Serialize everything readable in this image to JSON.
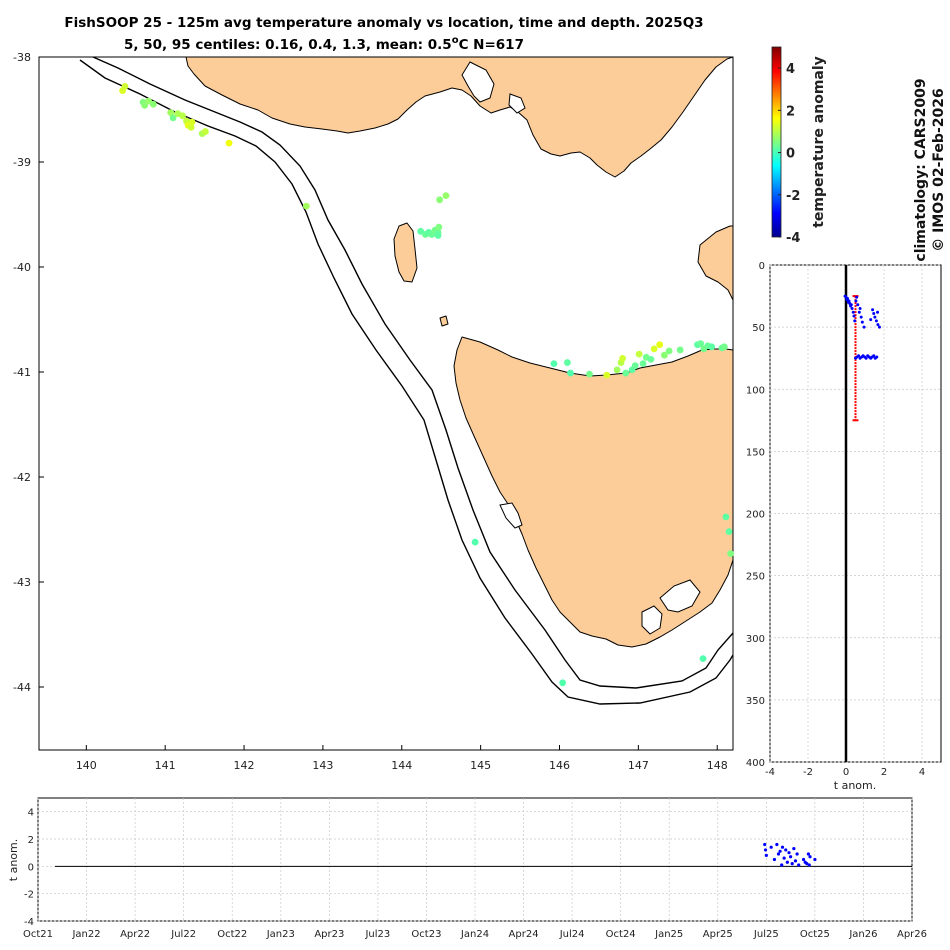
{
  "title": {
    "line1": "FishSOOP 25 - 125m avg temperature anomaly vs location, time and depth. 2025Q3",
    "line2_prefix": "5, 50, 95 centiles: 0.16, 0.4, 1.3, mean: 0.5",
    "line2_unit_sup": "o",
    "line2_suffix": "C N=617"
  },
  "side_text": {
    "climatology": "climatology: CARS2009",
    "copyright": "© IMOS 02-Feb-2026"
  },
  "colors": {
    "land": "#fccc99",
    "profile_points": "#0000ff",
    "median_bar": "#ff0000",
    "zero_line": "#000000"
  },
  "chart_data": [
    {
      "id": "map",
      "type": "scatter",
      "title": "temperature anomaly vs location",
      "xlabel": "",
      "ylabel": "",
      "xlim": [
        139.4,
        148.2
      ],
      "ylim": [
        -44.6,
        -38.0
      ],
      "xticks": [
        140,
        141,
        142,
        143,
        144,
        145,
        146,
        147,
        148
      ],
      "xtick_labels": [
        "140",
        "141",
        "142",
        "143",
        "144",
        "145",
        "146",
        "147",
        "148"
      ],
      "yticks": [
        -38,
        -39,
        -40,
        -41,
        -42,
        -43,
        -44
      ],
      "ytick_labels": [
        "-38",
        "-39",
        "-40",
        "-41",
        "-42",
        "-43",
        "-44"
      ],
      "grid": false,
      "points": [
        {
          "lon": 140.46,
          "lat": -38.32,
          "anom": 1.3
        },
        {
          "lon": 140.49,
          "lat": -38.28,
          "anom": 1.2
        },
        {
          "lon": 140.72,
          "lat": -38.43,
          "anom": 0.5
        },
        {
          "lon": 140.74,
          "lat": -38.46,
          "anom": 0.6
        },
        {
          "lon": 140.79,
          "lat": -38.42,
          "anom": 0.7
        },
        {
          "lon": 140.85,
          "lat": -38.45,
          "anom": 0.6
        },
        {
          "lon": 141.07,
          "lat": -38.53,
          "anom": 0.8
        },
        {
          "lon": 141.1,
          "lat": -38.58,
          "anom": 0.4
        },
        {
          "lon": 141.16,
          "lat": -38.54,
          "anom": 0.9
        },
        {
          "lon": 141.22,
          "lat": -38.56,
          "anom": 1.0
        },
        {
          "lon": 141.27,
          "lat": -38.61,
          "anom": 1.1
        },
        {
          "lon": 141.29,
          "lat": -38.65,
          "anom": 1.4
        },
        {
          "lon": 141.33,
          "lat": -38.67,
          "anom": 1.2
        },
        {
          "lon": 141.34,
          "lat": -38.62,
          "anom": 1.3
        },
        {
          "lon": 141.47,
          "lat": -38.73,
          "anom": 0.9
        },
        {
          "lon": 141.51,
          "lat": -38.71,
          "anom": 1.1
        },
        {
          "lon": 141.81,
          "lat": -38.82,
          "anom": 1.5
        },
        {
          "lon": 142.79,
          "lat": -39.42,
          "anom": 0.8
        },
        {
          "lon": 144.24,
          "lat": -39.66,
          "anom": 0.2
        },
        {
          "lon": 144.3,
          "lat": -39.69,
          "anom": 0.3
        },
        {
          "lon": 144.34,
          "lat": -39.67,
          "anom": 0.2
        },
        {
          "lon": 144.38,
          "lat": -39.69,
          "anom": 0.3
        },
        {
          "lon": 144.42,
          "lat": -39.65,
          "anom": 0.4
        },
        {
          "lon": 144.46,
          "lat": -39.67,
          "anom": 0.3
        },
        {
          "lon": 144.46,
          "lat": -39.7,
          "anom": 0.2
        },
        {
          "lon": 144.47,
          "lat": -39.62,
          "anom": 0.5
        },
        {
          "lon": 144.48,
          "lat": -39.36,
          "anom": 0.6
        },
        {
          "lon": 144.56,
          "lat": -39.32,
          "anom": 0.7
        },
        {
          "lon": 144.93,
          "lat": -42.62,
          "anom": 0.1
        },
        {
          "lon": 145.93,
          "lat": -40.92,
          "anom": 0.1
        },
        {
          "lon": 146.1,
          "lat": -40.91,
          "anom": 0.2
        },
        {
          "lon": 146.14,
          "lat": -41.01,
          "anom": 0.1
        },
        {
          "lon": 146.38,
          "lat": -41.02,
          "anom": 0.4
        },
        {
          "lon": 146.6,
          "lat": -41.03,
          "anom": 1.3
        },
        {
          "lon": 146.73,
          "lat": -40.98,
          "anom": 0.8
        },
        {
          "lon": 146.78,
          "lat": -40.91,
          "anom": 1.0
        },
        {
          "lon": 146.8,
          "lat": -40.87,
          "anom": 1.2
        },
        {
          "lon": 146.84,
          "lat": -41.01,
          "anom": 0.3
        },
        {
          "lon": 146.92,
          "lat": -40.98,
          "anom": 0.2
        },
        {
          "lon": 146.96,
          "lat": -40.94,
          "anom": 0.3
        },
        {
          "lon": 147.01,
          "lat": -40.83,
          "anom": 1.1
        },
        {
          "lon": 147.06,
          "lat": -40.92,
          "anom": 0.3
        },
        {
          "lon": 147.1,
          "lat": -40.86,
          "anom": 0.4
        },
        {
          "lon": 147.16,
          "lat": -40.88,
          "anom": 0.3
        },
        {
          "lon": 147.2,
          "lat": -40.78,
          "anom": 1.3
        },
        {
          "lon": 147.27,
          "lat": -40.74,
          "anom": 1.4
        },
        {
          "lon": 147.33,
          "lat": -40.84,
          "anom": 0.6
        },
        {
          "lon": 147.39,
          "lat": -40.8,
          "anom": 0.5
        },
        {
          "lon": 147.53,
          "lat": -40.79,
          "anom": 0.4
        },
        {
          "lon": 147.75,
          "lat": -40.74,
          "anom": 0.2
        },
        {
          "lon": 147.79,
          "lat": -40.73,
          "anom": 0.3
        },
        {
          "lon": 147.83,
          "lat": -40.78,
          "anom": 0.4
        },
        {
          "lon": 147.88,
          "lat": -40.75,
          "anom": 0.3
        },
        {
          "lon": 147.93,
          "lat": -40.76,
          "anom": 0.2
        },
        {
          "lon": 148.06,
          "lat": -40.77,
          "anom": 0.3
        },
        {
          "lon": 148.09,
          "lat": -40.76,
          "anom": 0.4
        },
        {
          "lon": 147.82,
          "lat": -43.73,
          "anom": 0.1
        },
        {
          "lon": 146.04,
          "lat": -43.96,
          "anom": 0.1
        },
        {
          "lon": 148.11,
          "lat": -42.38,
          "anom": 0.2
        },
        {
          "lon": 148.15,
          "lat": -42.52,
          "anom": 0.2
        },
        {
          "lon": 148.17,
          "lat": -42.73,
          "anom": 0.5
        }
      ]
    },
    {
      "id": "colorbar",
      "type": "colorbar",
      "label": "temperature anomaly",
      "clim": [
        -4,
        5
      ],
      "ticks": [
        -4,
        -2,
        0,
        2,
        4
      ],
      "tick_labels": [
        "-4",
        "-2",
        "0",
        "2",
        "4"
      ],
      "colormap": "jet"
    },
    {
      "id": "depth_profile",
      "type": "scatter",
      "xlabel": "t anom.",
      "ylabel": "",
      "xlim": [
        -4,
        5
      ],
      "ylim": [
        400,
        0
      ],
      "xticks": [
        -4,
        -2,
        0,
        2,
        4
      ],
      "xtick_labels": [
        "-4",
        "-2",
        "0",
        "2",
        "4"
      ],
      "yticks": [
        0,
        50,
        100,
        150,
        200,
        250,
        300,
        350,
        400
      ],
      "ytick_labels": [
        "0",
        "50",
        "100",
        "150",
        "200",
        "250",
        "300",
        "350",
        "400"
      ],
      "grid": true,
      "zero_line": 0,
      "median_errorbar": {
        "x": 0.5,
        "from_depth": 25,
        "to_depth": 125
      },
      "points": [
        {
          "x": -0.05,
          "depth": 25
        },
        {
          "x": 0.0,
          "depth": 26
        },
        {
          "x": 0.05,
          "depth": 28
        },
        {
          "x": 0.08,
          "depth": 27
        },
        {
          "x": 0.12,
          "depth": 30
        },
        {
          "x": 0.16,
          "depth": 29
        },
        {
          "x": 0.2,
          "depth": 31
        },
        {
          "x": 0.24,
          "depth": 33
        },
        {
          "x": 0.28,
          "depth": 32
        },
        {
          "x": 0.32,
          "depth": 35
        },
        {
          "x": 0.38,
          "depth": 38
        },
        {
          "x": 0.42,
          "depth": 41
        },
        {
          "x": 0.46,
          "depth": 45
        },
        {
          "x": 0.52,
          "depth": 29
        },
        {
          "x": 0.56,
          "depth": 26
        },
        {
          "x": 0.62,
          "depth": 32
        },
        {
          "x": 0.7,
          "depth": 38
        },
        {
          "x": 0.74,
          "depth": 35
        },
        {
          "x": 0.8,
          "depth": 42
        },
        {
          "x": 0.86,
          "depth": 46
        },
        {
          "x": 0.95,
          "depth": 50
        },
        {
          "x": 0.5,
          "depth": 75
        },
        {
          "x": 0.58,
          "depth": 74
        },
        {
          "x": 0.66,
          "depth": 73
        },
        {
          "x": 0.74,
          "depth": 75
        },
        {
          "x": 0.82,
          "depth": 74
        },
        {
          "x": 0.9,
          "depth": 73
        },
        {
          "x": 0.98,
          "depth": 74
        },
        {
          "x": 1.06,
          "depth": 75
        },
        {
          "x": 1.14,
          "depth": 73
        },
        {
          "x": 1.22,
          "depth": 74
        },
        {
          "x": 1.3,
          "depth": 75
        },
        {
          "x": 1.38,
          "depth": 74
        },
        {
          "x": 1.46,
          "depth": 73
        },
        {
          "x": 1.54,
          "depth": 75
        },
        {
          "x": 1.62,
          "depth": 74
        },
        {
          "x": 1.4,
          "depth": 36
        },
        {
          "x": 1.46,
          "depth": 39
        },
        {
          "x": 1.52,
          "depth": 42
        },
        {
          "x": 1.6,
          "depth": 45
        },
        {
          "x": 1.68,
          "depth": 48
        },
        {
          "x": 1.76,
          "depth": 50
        },
        {
          "x": 1.66,
          "depth": 38
        },
        {
          "x": 1.3,
          "depth": 44
        }
      ]
    },
    {
      "id": "time_series",
      "type": "scatter",
      "xlabel": "",
      "ylabel": "t anom.",
      "xlim": [
        0,
        54
      ],
      "ylim": [
        -4,
        5
      ],
      "xticks": [
        0,
        3,
        6,
        9,
        12,
        15,
        18,
        21,
        24,
        27,
        30,
        33,
        36,
        39,
        42,
        45,
        48,
        51,
        54
      ],
      "xtick_labels": [
        "Oct21",
        "Jan22",
        "Apr22",
        "Jul22",
        "Oct22",
        "Jan23",
        "Apr23",
        "Jul23",
        "Oct23",
        "Jan24",
        "Apr24",
        "Jul24",
        "Oct24",
        "Jan25",
        "Apr25",
        "Jul25",
        "Oct25",
        "Jan26",
        "Apr26"
      ],
      "yticks": [
        -4,
        -2,
        0,
        2,
        4
      ],
      "ytick_labels": [
        "-4",
        "-2",
        "0",
        "2",
        "4"
      ],
      "grid": true,
      "zero_line": 0,
      "points": [
        {
          "x": 44.9,
          "y": 1.6
        },
        {
          "x": 44.95,
          "y": 1.2
        },
        {
          "x": 45.0,
          "y": 0.8
        },
        {
          "x": 45.3,
          "y": 1.4
        },
        {
          "x": 45.5,
          "y": 0.5
        },
        {
          "x": 45.65,
          "y": 1.6
        },
        {
          "x": 45.75,
          "y": 0.9
        },
        {
          "x": 45.85,
          "y": 1.1
        },
        {
          "x": 45.95,
          "y": 0.1
        },
        {
          "x": 46.0,
          "y": 1.4
        },
        {
          "x": 46.1,
          "y": 0.6
        },
        {
          "x": 46.2,
          "y": 1.2
        },
        {
          "x": 46.3,
          "y": 0.3
        },
        {
          "x": 46.4,
          "y": 1.0
        },
        {
          "x": 46.5,
          "y": 0.7
        },
        {
          "x": 46.6,
          "y": 0.2
        },
        {
          "x": 46.7,
          "y": 1.3
        },
        {
          "x": 46.8,
          "y": 0.4
        },
        {
          "x": 46.9,
          "y": 0.9
        },
        {
          "x": 47.0,
          "y": 0.1
        },
        {
          "x": 47.3,
          "y": 0.5
        },
        {
          "x": 47.4,
          "y": 0.3
        },
        {
          "x": 47.5,
          "y": 0.2
        },
        {
          "x": 47.6,
          "y": 0.9
        },
        {
          "x": 47.65,
          "y": 0.1
        },
        {
          "x": 47.7,
          "y": 0.7
        },
        {
          "x": 48.0,
          "y": 0.5
        }
      ]
    }
  ]
}
